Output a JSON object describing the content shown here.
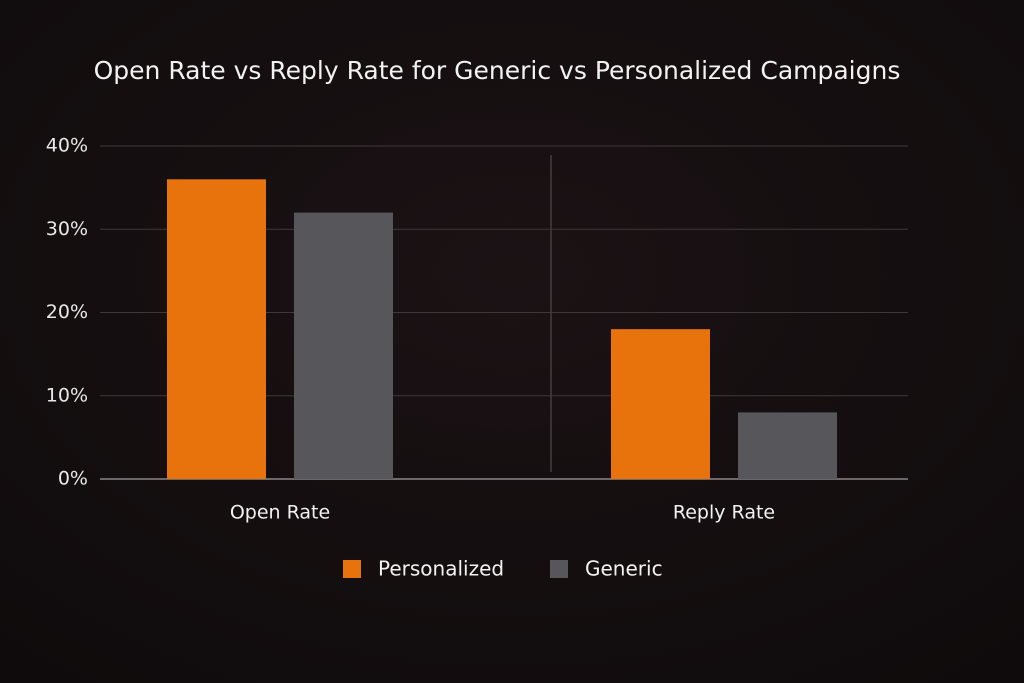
{
  "chart_data": {
    "type": "bar",
    "title": "Open Rate vs Reply Rate for Generic vs Personalized Campaigns",
    "categories": [
      "Open Rate",
      "Reply Rate"
    ],
    "series": [
      {
        "name": "Personalized",
        "color": "#e8720c",
        "values": [
          36,
          18
        ]
      },
      {
        "name": "Generic",
        "color": "#57565b",
        "values": [
          32,
          8
        ]
      }
    ],
    "ylim": [
      0,
      40
    ],
    "yticks": [
      {
        "value": 0,
        "label": "0%"
      },
      {
        "value": 10,
        "label": "10%"
      },
      {
        "value": 20,
        "label": "20%"
      },
      {
        "value": 30,
        "label": "30%"
      },
      {
        "value": 40,
        "label": "40%"
      }
    ],
    "grid": true
  }
}
